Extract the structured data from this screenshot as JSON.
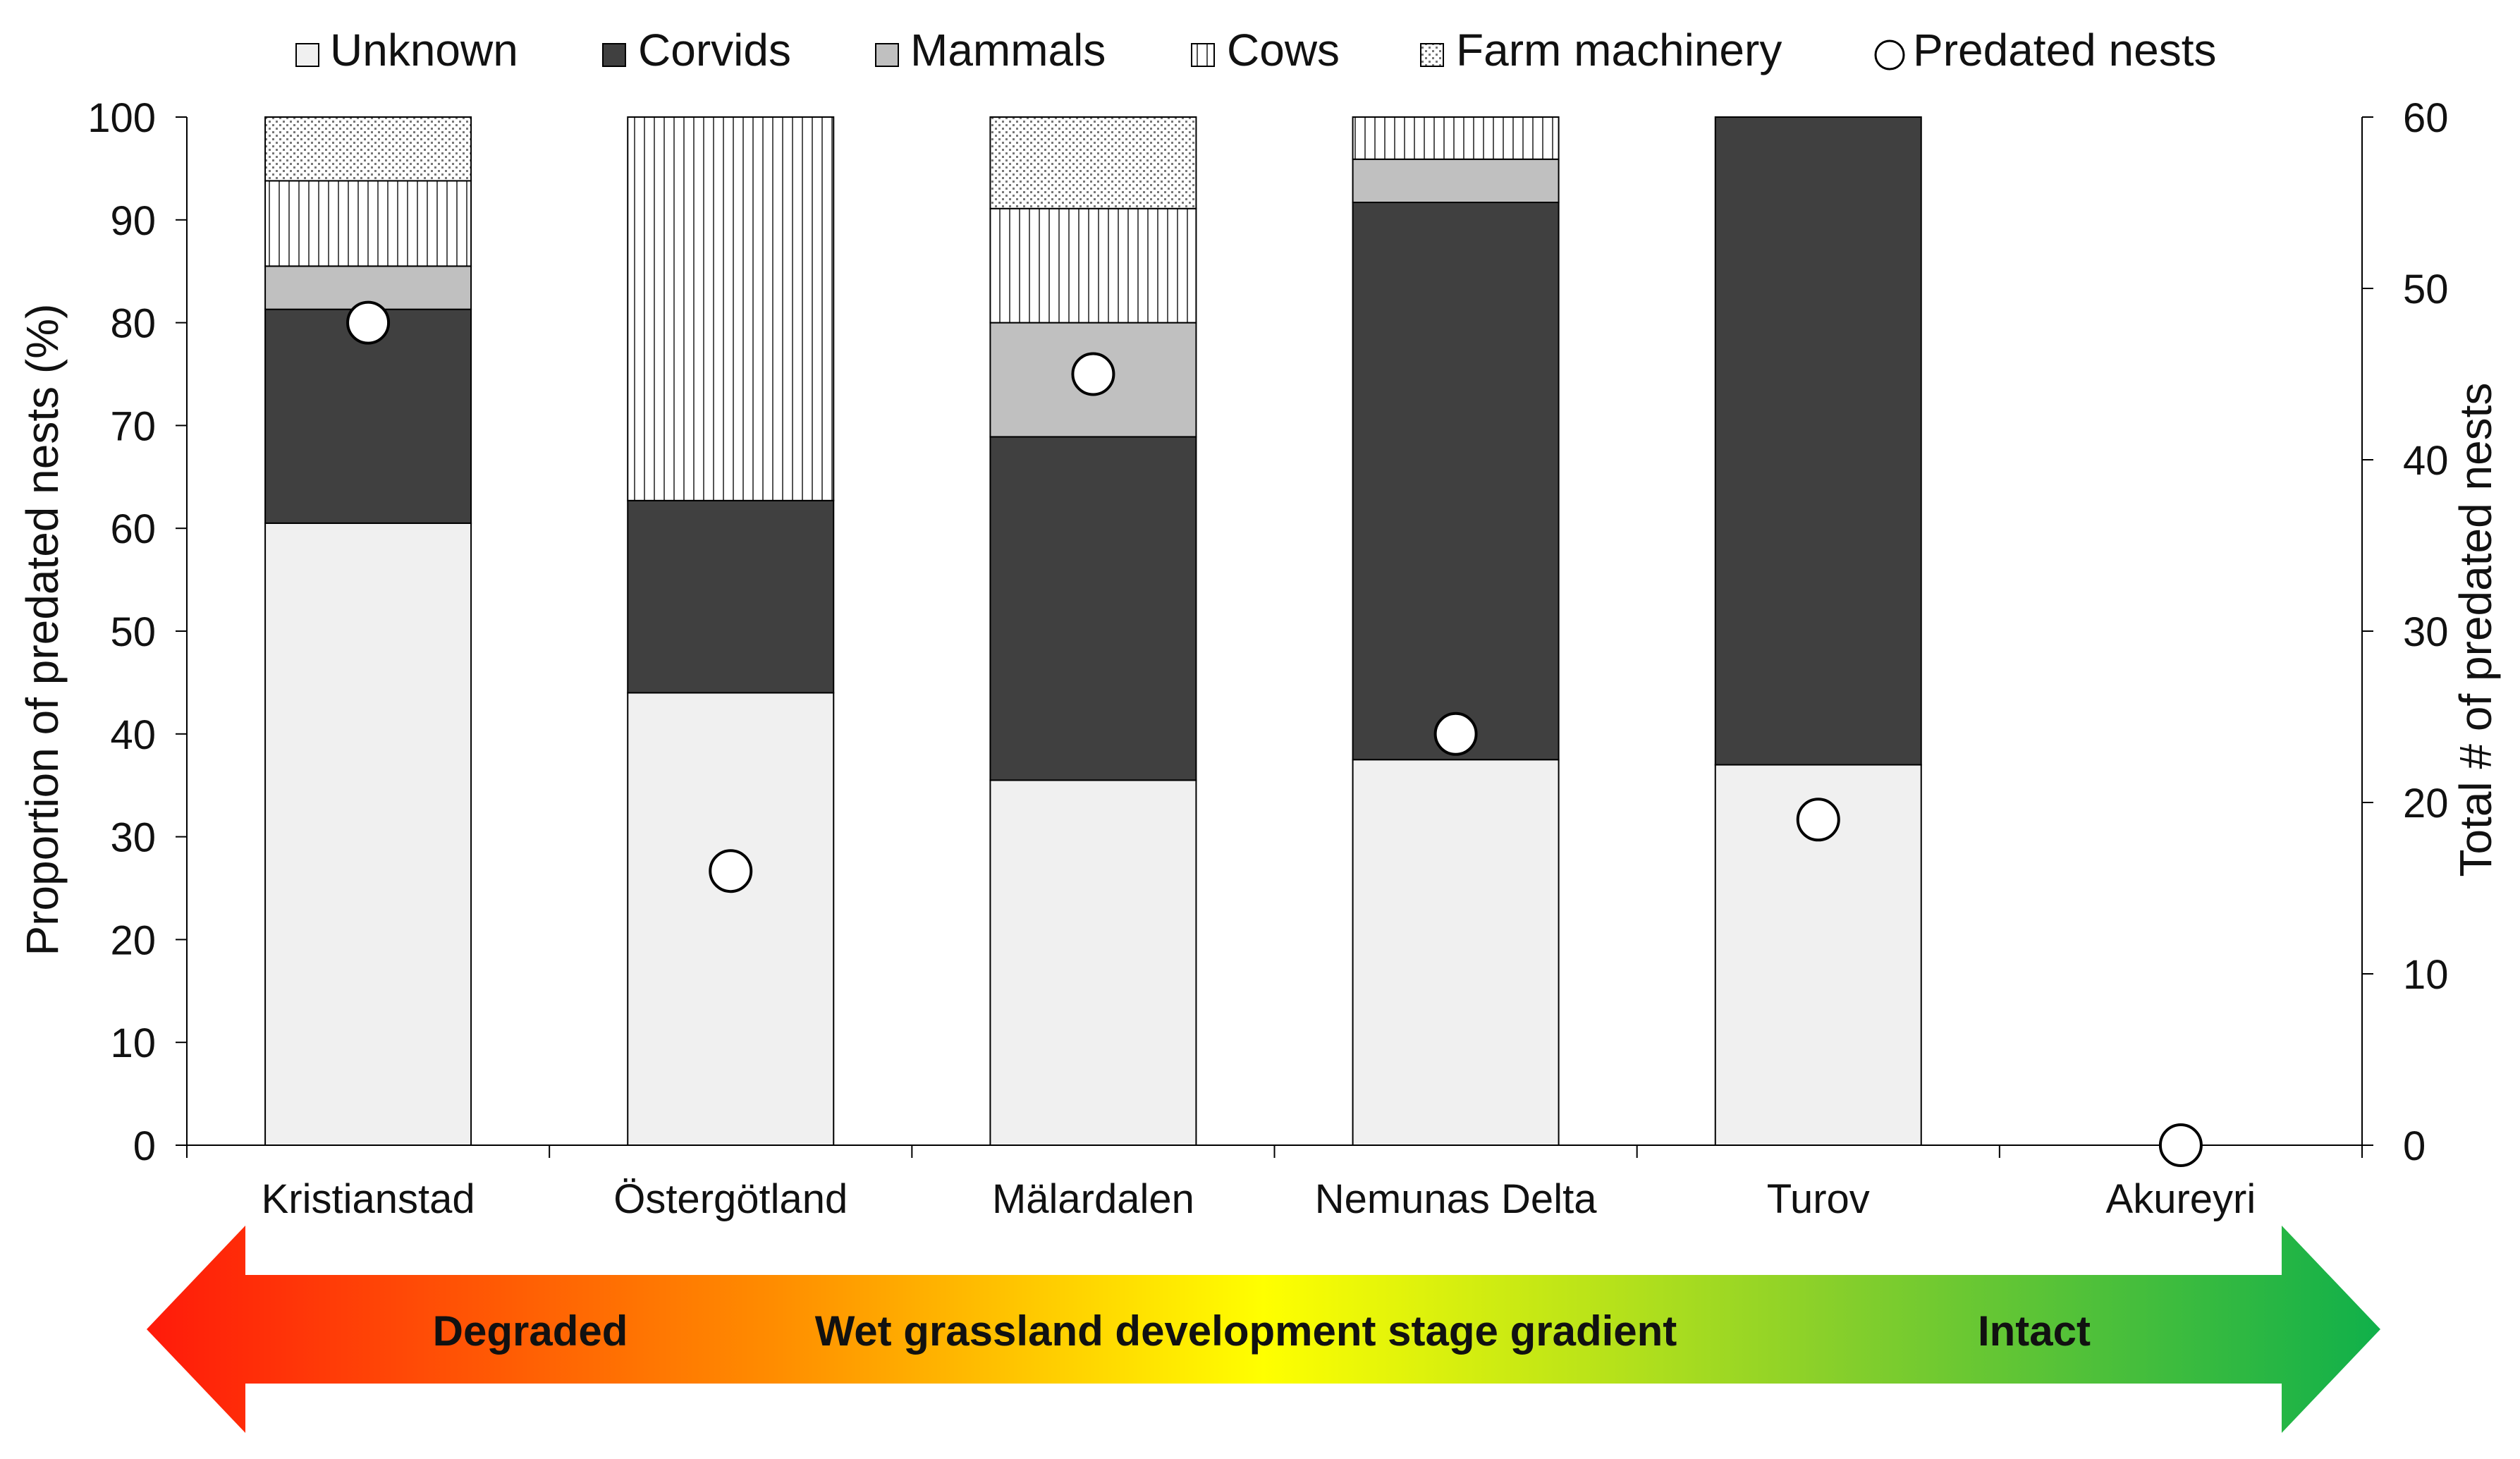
{
  "chart_data": {
    "type": "bar",
    "stacked": true,
    "title": "",
    "xlabel": "",
    "ylabel": "Proportion of predated nests (%)",
    "y2label": "Total # of predated nests",
    "ylim": [
      0,
      100
    ],
    "y2lim": [
      0,
      60
    ],
    "yticks": [
      "0",
      "10",
      "20",
      "30",
      "40",
      "50",
      "60",
      "70",
      "80",
      "90",
      "100"
    ],
    "y2ticks": [
      "0",
      "10",
      "20",
      "30",
      "40",
      "50",
      "60"
    ],
    "legend_position": "top",
    "categories": [
      "Kristianstad",
      "Östergötland",
      "Mälardalen",
      "Nemunas Delta",
      "Turov",
      "Akureyri"
    ],
    "series": [
      {
        "name": "Unknown",
        "color": "#f0f0f0",
        "pattern": "solid",
        "values": [
          60.5,
          44,
          35.5,
          37.5,
          37,
          0
        ]
      },
      {
        "name": "Corvids",
        "color": "#404040",
        "pattern": "solid",
        "values": [
          20.8,
          18.7,
          33.4,
          54.2,
          63,
          0
        ]
      },
      {
        "name": "Mammals",
        "color": "#c0c0c0",
        "pattern": "solid",
        "values": [
          4.2,
          0,
          11.1,
          4.2,
          0,
          0
        ]
      },
      {
        "name": "Cows",
        "color": "#ffffff",
        "pattern": "vertical-lines",
        "values": [
          8.3,
          37.3,
          11.1,
          4.1,
          0,
          0
        ]
      },
      {
        "name": "Farm machinery",
        "color": "#ffffff",
        "pattern": "dots",
        "values": [
          6.2,
          0,
          8.9,
          0,
          0,
          0
        ]
      }
    ],
    "secondary_series": {
      "name": "Predated nests",
      "marker": "open-circle",
      "axis": "right",
      "values": [
        48,
        16,
        45,
        24,
        19,
        0
      ]
    }
  },
  "gradient_arrow": {
    "left_label": "Degraded",
    "center_label": "Wet grassland development stage gradient",
    "right_label": "Intact",
    "colors": [
      "#ff1a0a",
      "#ff8c00",
      "#ffff00",
      "#8ad02a",
      "#10b04a"
    ]
  }
}
